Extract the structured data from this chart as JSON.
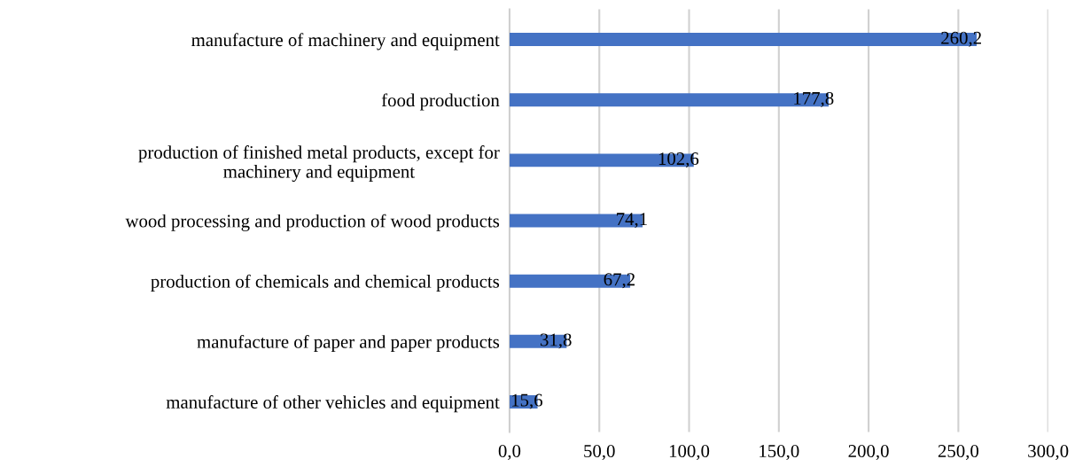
{
  "chart_data": {
    "type": "bar",
    "orientation": "horizontal",
    "categories": [
      "manufacture of machinery and equipment",
      "food production",
      "production of finished metal products, except for\nmachinery and equipment",
      "wood processing and production of wood products",
      "production of chemicals and chemical products",
      "manufacture of paper and paper products",
      "manufacture of other vehicles and equipment"
    ],
    "values": [
      260.2,
      177.8,
      102.6,
      74.1,
      67.2,
      31.8,
      15.6
    ],
    "value_labels": [
      "260,2",
      "177,8",
      "102,6",
      "74,1",
      "67,2",
      "31,8",
      "15,6"
    ],
    "color": "#4472c4",
    "xlim": [
      0,
      300
    ],
    "xticks": [
      {
        "value": 0,
        "label": "0,0"
      },
      {
        "value": 50,
        "label": "50,0"
      },
      {
        "value": 100,
        "label": "100,0"
      },
      {
        "value": 150,
        "label": "150,0"
      },
      {
        "value": 200,
        "label": "200,0"
      },
      {
        "value": 250,
        "label": "250,0"
      },
      {
        "value": 300,
        "label": "300,0"
      }
    ],
    "grid": "x",
    "legend": false
  }
}
